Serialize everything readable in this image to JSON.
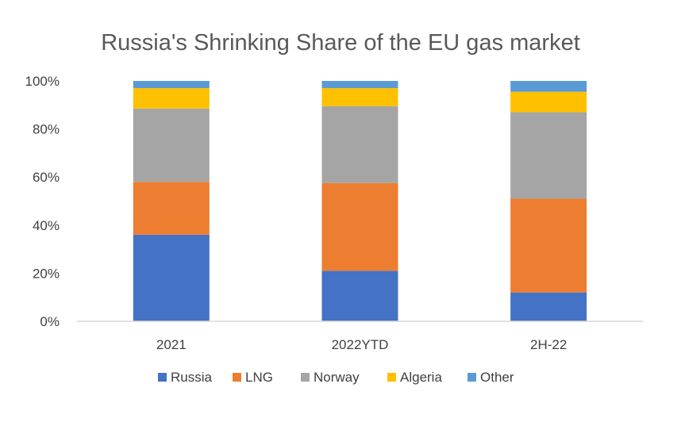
{
  "chart_data": {
    "type": "bar",
    "stacked": true,
    "title": "Russia's Shrinking Share of the EU gas market",
    "categories": [
      "2021",
      "2022YTD",
      "2H-22"
    ],
    "series": [
      {
        "name": "Russia",
        "color": "#4472C4",
        "values": [
          36,
          21,
          12
        ]
      },
      {
        "name": "LNG",
        "color": "#ED7D31",
        "values": [
          22,
          36.5,
          39
        ]
      },
      {
        "name": "Norway",
        "color": "#A5A5A5",
        "values": [
          30.5,
          32,
          36
        ]
      },
      {
        "name": "Algeria",
        "color": "#FFC000",
        "values": [
          8.5,
          7.5,
          8.5
        ]
      },
      {
        "name": "Other",
        "color": "#5B9BD5",
        "values": [
          3,
          3,
          4.5
        ]
      }
    ],
    "yticks": [
      "0%",
      "20%",
      "40%",
      "60%",
      "80%",
      "100%"
    ],
    "ylim": [
      0,
      100
    ],
    "grid": false,
    "legend": "bottom"
  }
}
